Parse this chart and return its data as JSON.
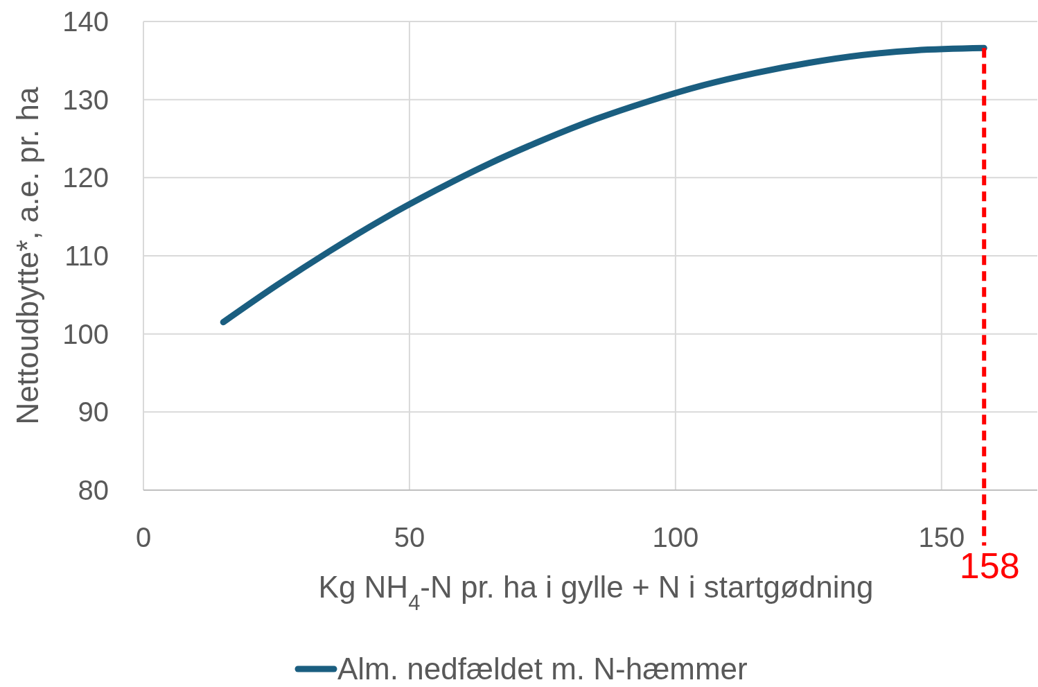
{
  "chart_data": {
    "type": "line",
    "xlabel": "Kg NH$_{4}$-N pr. ha i gylle + N i startgødning",
    "ylabel": "Nettoudbytte*, a.e. pr. ha",
    "xlim": [
      0,
      168
    ],
    "xticks": [
      0,
      50,
      100,
      150
    ],
    "ylim": [
      80,
      140
    ],
    "yticks": [
      80,
      90,
      100,
      110,
      120,
      130,
      140
    ],
    "grid": true,
    "legend": "bottom",
    "line_style": "solid",
    "marker": "none",
    "series": [
      {
        "name": "Alm. nedfældet m. N-hæmmer",
        "color": "#1a5e80",
        "x": [
          15,
          25,
          35,
          45,
          55,
          65,
          75,
          85,
          95,
          105,
          115,
          125,
          135,
          145,
          158
        ],
        "values": [
          101.5,
          106.2,
          110.6,
          114.7,
          118.4,
          121.8,
          124.8,
          127.5,
          129.8,
          131.8,
          133.4,
          134.7,
          135.7,
          136.3,
          136.6
        ]
      }
    ],
    "ref_lines": [
      {
        "axis": "x",
        "value": 158,
        "label": "158",
        "color": "#ff0000",
        "line_style": "dashed"
      }
    ]
  }
}
